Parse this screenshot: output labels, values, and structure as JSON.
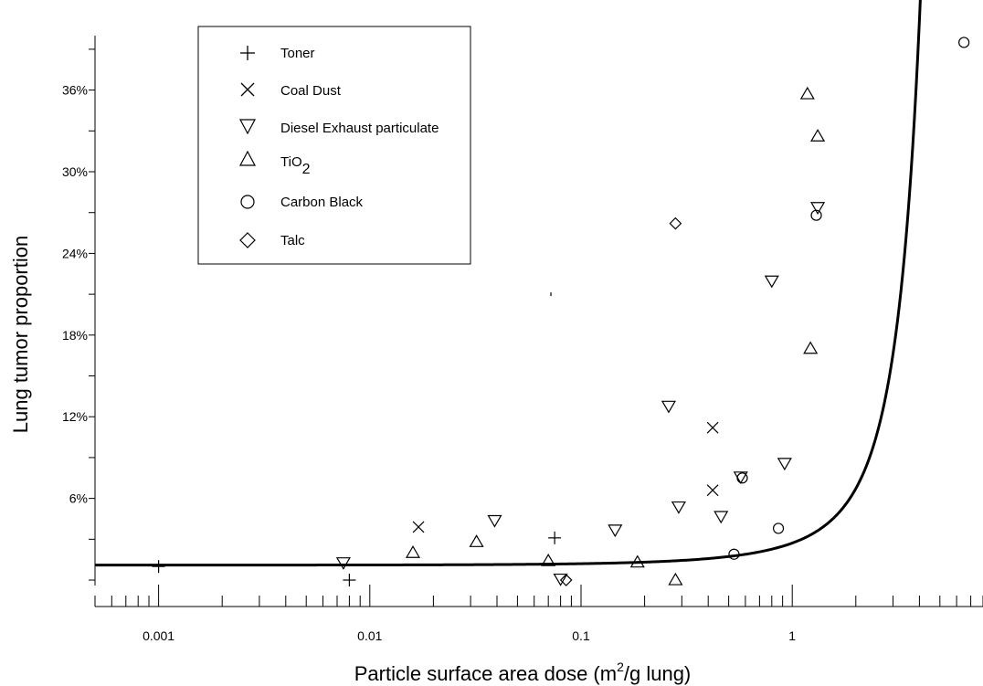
{
  "chart_data": {
    "type": "scatter",
    "xlabel": "Particle surface area dose (m²/g lung)",
    "ylabel": "Lung tumor proportion",
    "xscale": "log",
    "xlim": [
      0.0005,
      8
    ],
    "ylim": [
      -0.004,
      0.4
    ],
    "x_tick_labels": [
      "0.001",
      "0.01",
      "0.1",
      "1"
    ],
    "y_tick_labels": [
      "6%",
      "12%",
      "18%",
      "24%",
      "30%",
      "36%"
    ],
    "legend_position": "top-left",
    "series": [
      {
        "name": "Toner",
        "marker": "plus",
        "points": [
          [
            0.001,
            0.01
          ],
          [
            0.008,
            0.0
          ],
          [
            0.075,
            0.031
          ]
        ]
      },
      {
        "name": "Coal Dust",
        "marker": "x",
        "points": [
          [
            0.017,
            0.039
          ],
          [
            0.42,
            0.066
          ],
          [
            0.42,
            0.112
          ]
        ]
      },
      {
        "name": "Diesel Exhaust particulate",
        "marker": "triangle-down",
        "points": [
          [
            0.0075,
            0.013
          ],
          [
            0.039,
            0.044
          ],
          [
            0.08,
            0.001
          ],
          [
            0.145,
            0.037
          ],
          [
            0.26,
            0.128
          ],
          [
            0.29,
            0.054
          ],
          [
            0.46,
            0.047
          ],
          [
            0.57,
            0.076
          ],
          [
            0.8,
            0.22
          ],
          [
            0.92,
            0.086
          ],
          [
            1.32,
            0.274
          ]
        ]
      },
      {
        "name": "TiO2",
        "marker": "triangle-up",
        "points": [
          [
            0.016,
            0.02
          ],
          [
            0.032,
            0.028
          ],
          [
            0.07,
            0.014
          ],
          [
            0.185,
            0.013
          ],
          [
            0.28,
            0.0
          ],
          [
            1.18,
            0.357
          ],
          [
            1.22,
            0.17
          ],
          [
            1.32,
            0.326
          ]
        ]
      },
      {
        "name": "Carbon Black",
        "marker": "circle",
        "points": [
          [
            0.53,
            0.019
          ],
          [
            0.58,
            0.075
          ],
          [
            0.86,
            0.038
          ],
          [
            1.3,
            0.268
          ],
          [
            6.5,
            0.395
          ]
        ]
      },
      {
        "name": "Talc",
        "marker": "diamond",
        "points": [
          [
            0.085,
            0.0
          ],
          [
            0.28,
            0.262
          ]
        ]
      }
    ],
    "fit_curve": {
      "intercept": 0.011,
      "slope": 0.124,
      "x_range": [
        0.0005,
        4.9
      ]
    },
    "stray_mark": [
      0.072,
      0.21
    ]
  },
  "legend": {
    "entries": [
      "Toner",
      "Coal Dust",
      "Diesel Exhaust particulate",
      "TiO",
      "Carbon Black",
      "Talc"
    ],
    "tio2_subscript": "2"
  },
  "axes": {
    "xlabel_main": "Particle surface area dose (m",
    "xlabel_sup": "2",
    "xlabel_tail": "/g lung)",
    "ylabel": "Lung tumor proportion"
  }
}
